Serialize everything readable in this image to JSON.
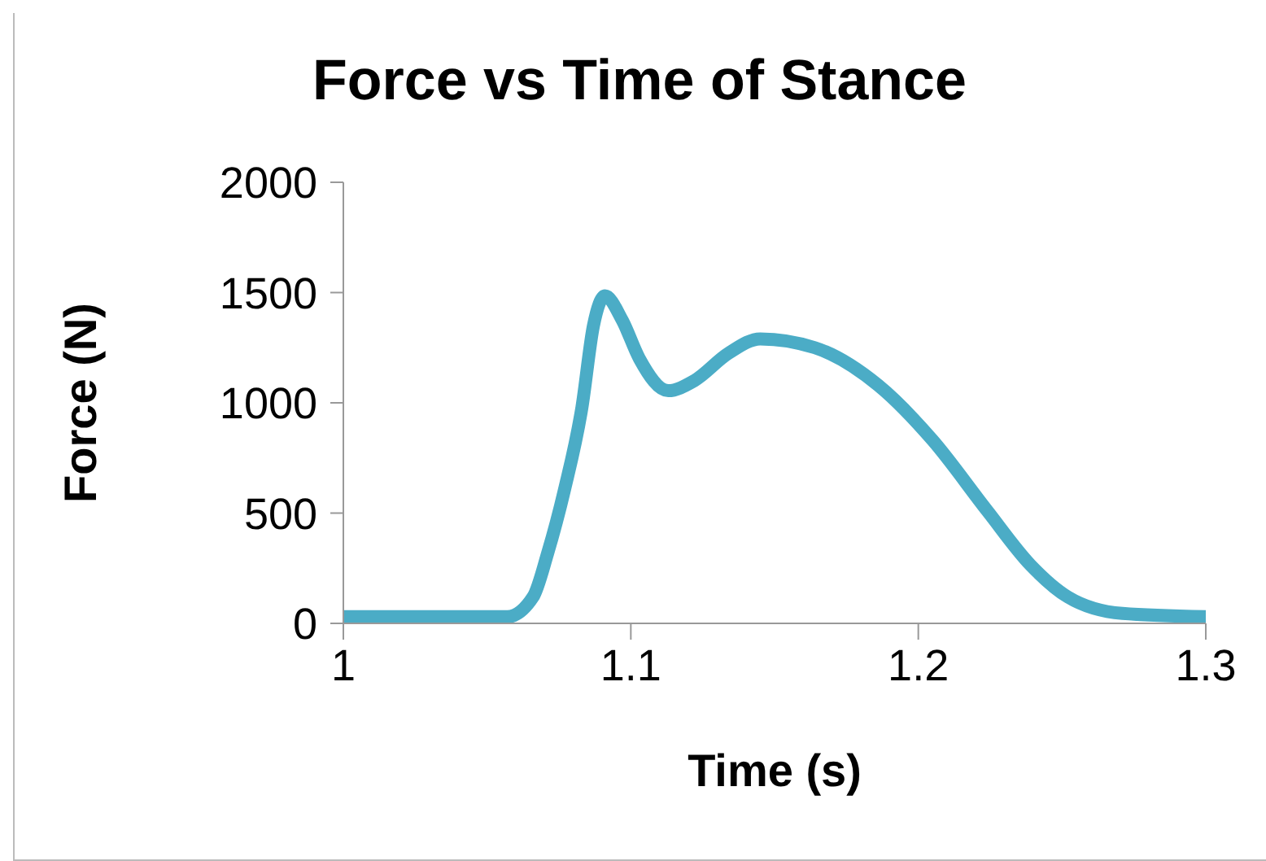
{
  "chart_data": {
    "type": "line",
    "title": "Force vs Time of Stance",
    "xlabel": "Time (s)",
    "ylabel": "Force (N)",
    "xlim": [
      1,
      1.3
    ],
    "xticks": [
      1,
      1.1,
      1.2,
      1.3
    ],
    "ylim": [
      0,
      2000
    ],
    "yticks": [
      0,
      500,
      1000,
      1500,
      2000
    ],
    "grid": false,
    "legend": false,
    "marker": "none",
    "line_style": "solid",
    "series": [
      {
        "color": "#4bacc6",
        "x": [
          1.0,
          1.057,
          1.066,
          1.071,
          1.077,
          1.083,
          1.087,
          1.091,
          1.097,
          1.103,
          1.113,
          1.122,
          1.134,
          1.145,
          1.164,
          1.186,
          1.205,
          1.224,
          1.239,
          1.252,
          1.271,
          1.3
        ],
        "values": [
          30,
          30,
          120,
          315,
          610,
          980,
          1350,
          1485,
          1375,
          1200,
          1055,
          1100,
          1225,
          1290,
          1250,
          1080,
          830,
          510,
          265,
          120,
          45,
          30
        ]
      }
    ]
  }
}
